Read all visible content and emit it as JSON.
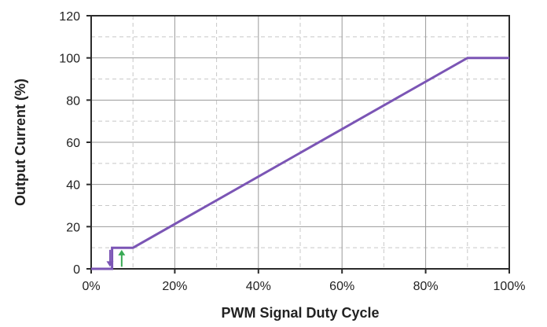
{
  "chart_data": {
    "type": "line",
    "xlabel": "PWM Signal Duty Cycle",
    "ylabel": "Output Current (%)",
    "xlim": [
      0,
      100
    ],
    "ylim": [
      0,
      120
    ],
    "x_ticks": [
      0,
      20,
      40,
      60,
      80,
      100
    ],
    "x_tick_labels": [
      "0%",
      "20%",
      "40%",
      "60%",
      "80%",
      "100%"
    ],
    "y_ticks": [
      0,
      20,
      40,
      60,
      80,
      100,
      120
    ],
    "y_tick_labels": [
      "0",
      "20",
      "40",
      "60",
      "80",
      "100",
      "120"
    ],
    "grid": true,
    "legend": "none",
    "series": [
      {
        "color": "#7b55b5",
        "points": [
          [
            0,
            0
          ],
          [
            5,
            0
          ],
          [
            5,
            10
          ],
          [
            10,
            10
          ],
          [
            90,
            100
          ],
          [
            100,
            100
          ]
        ]
      }
    ],
    "annotations": [
      {
        "kind": "arrow-down",
        "x": 4.5,
        "from_y": 9,
        "to_y": 1,
        "color": "#7b55b5"
      },
      {
        "kind": "arrow-up",
        "x": 7.3,
        "from_y": 1,
        "to_y": 9,
        "color": "#3aaa55"
      }
    ]
  }
}
